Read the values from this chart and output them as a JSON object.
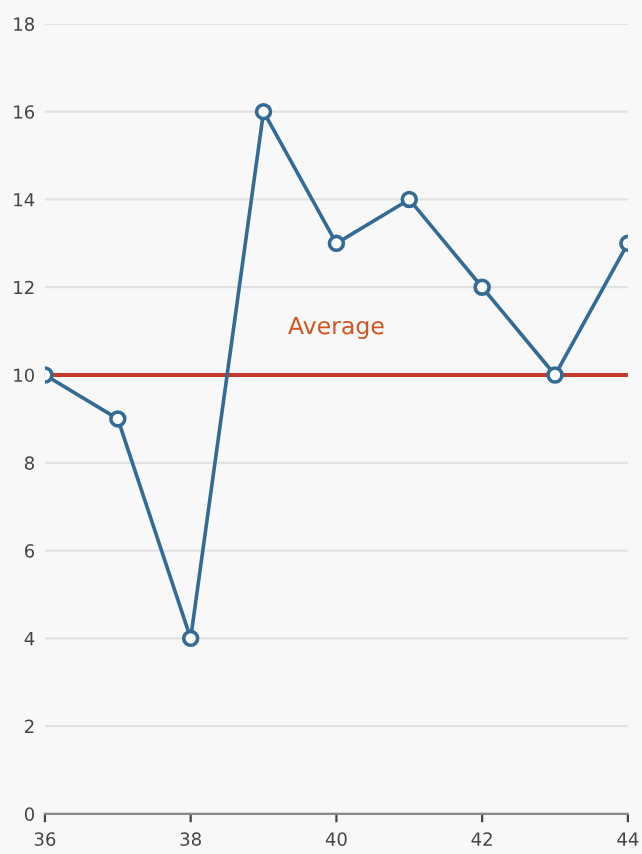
{
  "chart_data": {
    "type": "line",
    "x": [
      36,
      37,
      38,
      39,
      40,
      41,
      42,
      43,
      44
    ],
    "series": [
      {
        "color": "#336b94",
        "values": [
          10,
          9,
          4,
          16,
          13,
          14,
          12,
          10,
          13
        ]
      }
    ],
    "xlim": [
      36,
      44
    ],
    "xticks": [
      36,
      38,
      40,
      42,
      44
    ],
    "ylim": [
      0,
      18
    ],
    "yticks": [
      0,
      2,
      4,
      6,
      8,
      10,
      12,
      14,
      16,
      18
    ],
    "ref_lines": [
      {
        "axis": "y",
        "value": 10,
        "label": "Average",
        "color": "#c0392b"
      }
    ],
    "grid": "y",
    "marker": "circle",
    "line_style": "solid"
  }
}
